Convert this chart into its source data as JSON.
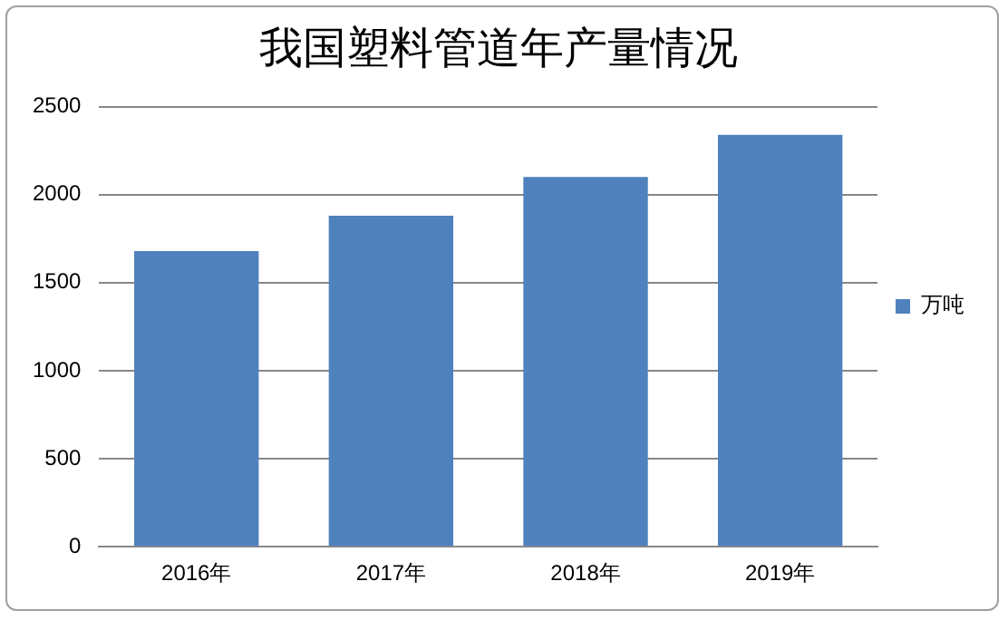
{
  "chart_data": {
    "type": "bar",
    "title": "我国塑料管道年产量情况",
    "categories": [
      "2016年",
      "2017年",
      "2018年",
      "2019年"
    ],
    "series": [
      {
        "name": "万吨",
        "color": "#4f81bd",
        "values": [
          1680,
          1880,
          2100,
          2340
        ]
      }
    ],
    "ylim": [
      0,
      2500
    ],
    "yticks": [
      0,
      500,
      1000,
      1500,
      2000,
      2500
    ],
    "grid": "y",
    "legend": "right"
  }
}
